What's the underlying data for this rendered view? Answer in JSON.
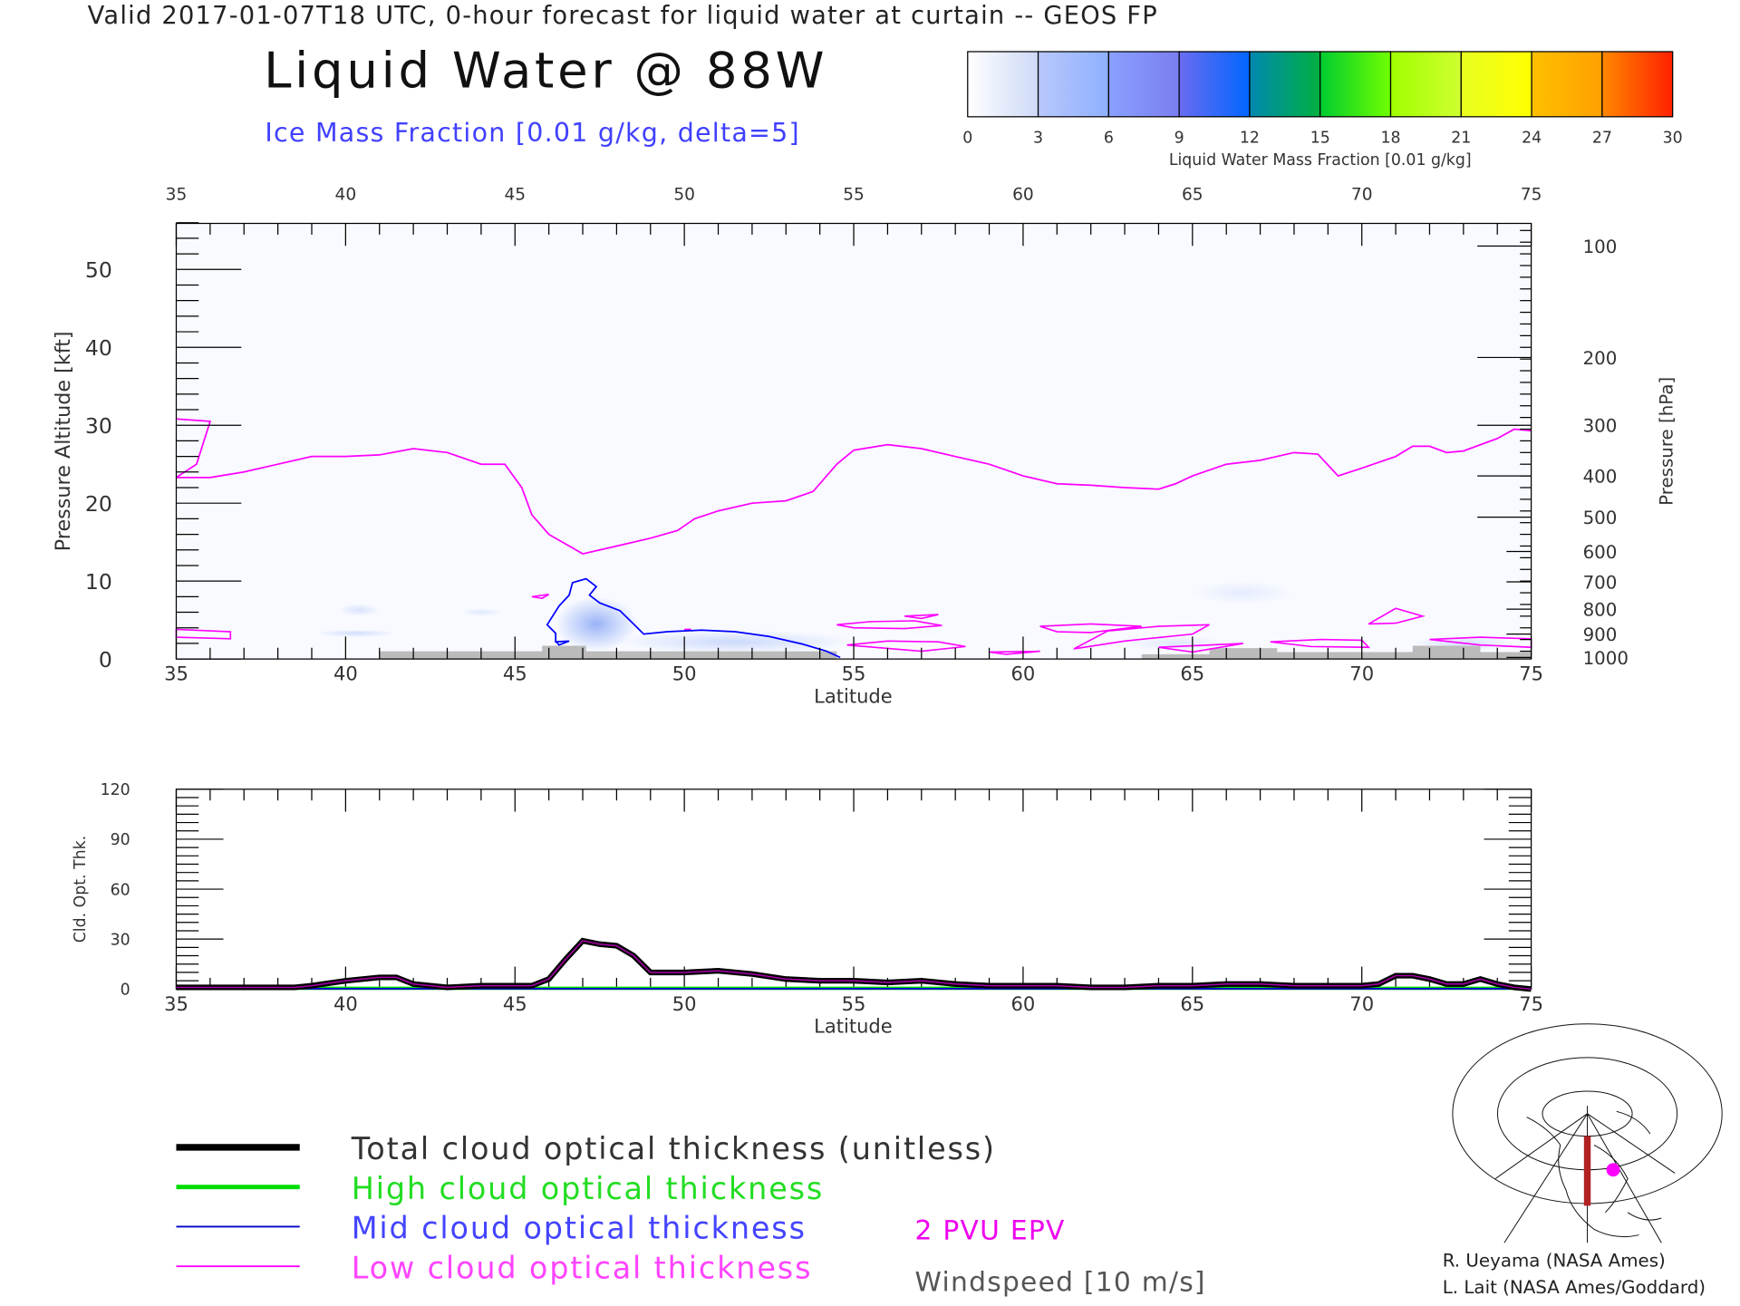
{
  "header": {
    "valid_line": "Valid 2017-01-07T18 UTC, 0-hour forecast for liquid water at curtain -- GEOS FP",
    "title": "Liquid Water @ 88W",
    "subtitle": "Ice Mass Fraction [0.01 g/kg, delta=5]"
  },
  "colorbar": {
    "ticks": [
      "0",
      "3",
      "6",
      "9",
      "12",
      "15",
      "18",
      "21",
      "24",
      "27",
      "30"
    ],
    "label": "Liquid Water Mass Fraction [0.01 g/kg]",
    "colors": [
      [
        "#ffffff",
        "#cdd9f7"
      ],
      [
        "#b8c8fb",
        "#8fb0ff"
      ],
      [
        "#8aa0ff",
        "#7a7ef0"
      ],
      [
        "#6a6cf0",
        "#0066ff"
      ],
      [
        "#0088b0",
        "#00b040"
      ],
      [
        "#00cc30",
        "#70ff00"
      ],
      [
        "#a0ff00",
        "#d0ff30"
      ],
      [
        "#e8ff20",
        "#ffff00"
      ],
      [
        "#ffc000",
        "#ffa000"
      ],
      [
        "#ff8800",
        "#ff2000"
      ]
    ]
  },
  "chart_data": [
    {
      "type": "line",
      "title": "Liquid Water @ 88W",
      "xlabel": "Latitude",
      "ylabel": "Pressure Altitude [kft]",
      "y2label": "Pressure [hPa]",
      "xlim": [
        35,
        75
      ],
      "ylim": [
        0,
        56
      ],
      "xticks": [
        35,
        40,
        45,
        50,
        55,
        60,
        65,
        70,
        75
      ],
      "yticks": [
        0,
        10,
        20,
        30,
        40,
        50
      ],
      "y2ticks": [
        {
          "label": "100",
          "kft": 53
        },
        {
          "label": "200",
          "kft": 38.7
        },
        {
          "label": "300",
          "kft": 30
        },
        {
          "label": "400",
          "kft": 23.5
        },
        {
          "label": "500",
          "kft": 18.2
        },
        {
          "label": "600",
          "kft": 13.8
        },
        {
          "label": "700",
          "kft": 9.9
        },
        {
          "label": "800",
          "kft": 6.4
        },
        {
          "label": "900",
          "kft": 3.2
        },
        {
          "label": "1000",
          "kft": 0.2
        }
      ],
      "epv_2pvu": {
        "name": "2 PVU EPV",
        "color": "#ff00ff",
        "points": [
          [
            35,
            23.3
          ],
          [
            36,
            23.3
          ],
          [
            37,
            24
          ],
          [
            38,
            25
          ],
          [
            39,
            26
          ],
          [
            40,
            26
          ],
          [
            41,
            26.2
          ],
          [
            42,
            27
          ],
          [
            43,
            26.5
          ],
          [
            44,
            25
          ],
          [
            44.7,
            25
          ],
          [
            45.2,
            22
          ],
          [
            45.5,
            18.5
          ],
          [
            46,
            16
          ],
          [
            47,
            13.5
          ],
          [
            48,
            14.5
          ],
          [
            49,
            15.5
          ],
          [
            49.8,
            16.5
          ],
          [
            50.3,
            18
          ],
          [
            51,
            19
          ],
          [
            52,
            20
          ],
          [
            53,
            20.3
          ],
          [
            53.8,
            21.5
          ],
          [
            54.5,
            25
          ],
          [
            55,
            26.8
          ],
          [
            56,
            27.5
          ],
          [
            57,
            27
          ],
          [
            58,
            26
          ],
          [
            59,
            25
          ],
          [
            60,
            23.5
          ],
          [
            61,
            22.5
          ],
          [
            62,
            22.3
          ],
          [
            63,
            22
          ],
          [
            64,
            21.8
          ],
          [
            64.5,
            22.5
          ],
          [
            65,
            23.5
          ],
          [
            66,
            25
          ],
          [
            67,
            25.5
          ],
          [
            68,
            26.5
          ],
          [
            68.7,
            26.3
          ],
          [
            69.3,
            23.5
          ],
          [
            70,
            24.5
          ],
          [
            71,
            26
          ],
          [
            71.5,
            27.3
          ],
          [
            72,
            27.3
          ],
          [
            72.5,
            26.5
          ],
          [
            73,
            26.7
          ],
          [
            74,
            28.3
          ],
          [
            74.5,
            29.5
          ],
          [
            75,
            29.3
          ]
        ],
        "left_segment": [
          [
            35,
            23.3
          ],
          [
            35.6,
            25
          ],
          [
            36,
            30.5
          ],
          [
            35,
            30.8
          ]
        ]
      },
      "ice_contour": {
        "color": "#0000ff",
        "points": [
          [
            54.6,
            0.2
          ],
          [
            54.2,
            1
          ],
          [
            53.5,
            1.9
          ],
          [
            52.5,
            2.9
          ],
          [
            51.5,
            3.5
          ],
          [
            50.5,
            3.7
          ],
          [
            49.5,
            3.5
          ],
          [
            48.8,
            3.2
          ],
          [
            48.5,
            4.5
          ],
          [
            48.1,
            6.2
          ],
          [
            47.5,
            7.2
          ],
          [
            47.2,
            8.2
          ],
          [
            47.4,
            9.3
          ],
          [
            47.1,
            10.3
          ],
          [
            46.7,
            9.8
          ],
          [
            46.6,
            8.2
          ],
          [
            46.3,
            6.8
          ],
          [
            45.95,
            4.4
          ],
          [
            46.2,
            3.3
          ],
          [
            46.2,
            2.2
          ],
          [
            46.6,
            2.3
          ],
          [
            46.3,
            1.8
          ],
          [
            46.2,
            2.3
          ]
        ]
      },
      "low_epv_loops": [
        [
          [
            54.5,
            4.4
          ],
          [
            55.5,
            4.8
          ],
          [
            56.8,
            4.9
          ],
          [
            57.6,
            4.3
          ],
          [
            56.5,
            3.9
          ],
          [
            55,
            4
          ]
        ],
        [
          [
            56.5,
            5.5
          ],
          [
            57.5,
            5.7
          ],
          [
            57,
            5.2
          ]
        ],
        [
          [
            54.8,
            1.8
          ],
          [
            56,
            2.3
          ],
          [
            57.5,
            2.2
          ],
          [
            58.3,
            1.6
          ],
          [
            57,
            1
          ]
        ],
        [
          [
            59,
            0.9
          ],
          [
            60.5,
            1
          ],
          [
            59.5,
            0.6
          ]
        ],
        [
          [
            60.5,
            4.2
          ],
          [
            62,
            4.5
          ],
          [
            63.5,
            4.2
          ],
          [
            62,
            3.4
          ],
          [
            61,
            3.5
          ]
        ],
        [
          [
            61.5,
            1.3
          ],
          [
            63,
            2.3
          ],
          [
            65,
            3.2
          ],
          [
            65.5,
            4.4
          ],
          [
            64,
            4.2
          ],
          [
            62.5,
            3.6
          ]
        ],
        [
          [
            64,
            1.5
          ],
          [
            65.5,
            1.8
          ],
          [
            66.5,
            2
          ],
          [
            65,
            0.9
          ]
        ],
        [
          [
            67.3,
            2.2
          ],
          [
            68.8,
            2.5
          ],
          [
            70,
            2.4
          ],
          [
            70.2,
            1.5
          ],
          [
            68.5,
            1.6
          ]
        ],
        [
          [
            70.2,
            4.5
          ],
          [
            71,
            6.5
          ],
          [
            71.8,
            5.5
          ],
          [
            71,
            4.6
          ]
        ],
        [
          [
            72,
            2.5
          ],
          [
            73.5,
            2.8
          ],
          [
            75,
            2.6
          ],
          [
            75,
            1.5
          ],
          [
            73.5,
            1.8
          ]
        ],
        [
          [
            35,
            2.8
          ],
          [
            36.6,
            2.6
          ],
          [
            36.6,
            3.5
          ],
          [
            35,
            3.8
          ]
        ],
        [
          [
            45.5,
            8
          ],
          [
            46,
            8.3
          ],
          [
            45.8,
            7.8
          ]
        ],
        [
          [
            50,
            3.8
          ],
          [
            50.2,
            3.8
          ]
        ]
      ],
      "ice_blobs": [
        [
          47.4,
          4.5,
          1.2,
          3.5,
          0.75
        ],
        [
          51.5,
          2.2,
          3.5,
          1.5,
          0.35
        ],
        [
          40.3,
          3.3,
          1.2,
          0.5,
          0.3
        ],
        [
          40.4,
          6.3,
          0.6,
          0.8,
          0.25
        ],
        [
          44,
          6,
          0.6,
          0.5,
          0.2
        ],
        [
          66.5,
          8.5,
          1.5,
          1.5,
          0.15
        ],
        [
          73,
          2,
          1.5,
          1,
          0.3
        ],
        [
          64.5,
          2,
          1.5,
          1,
          0.2
        ]
      ],
      "terrain": [
        [
          41,
          0
        ],
        [
          41,
          1
        ],
        [
          45.8,
          1
        ],
        [
          45.8,
          1.7
        ],
        [
          47.1,
          1.7
        ],
        [
          47.1,
          1
        ],
        [
          54.5,
          1
        ],
        [
          54.5,
          0
        ],
        [
          63.5,
          0
        ],
        [
          63.5,
          0.6
        ],
        [
          65.5,
          0.6
        ],
        [
          65.5,
          1.4
        ],
        [
          67.5,
          1.4
        ],
        [
          67.5,
          0.9
        ],
        [
          71.5,
          0.9
        ],
        [
          71.5,
          1.7
        ],
        [
          73.5,
          1.7
        ],
        [
          73.5,
          0.9
        ],
        [
          75,
          0.9
        ],
        [
          75,
          0
        ]
      ]
    },
    {
      "type": "line",
      "xlabel": "Latitude",
      "ylabel": "Cld. Opt. Thk.",
      "xlim": [
        35,
        75
      ],
      "ylim": [
        0,
        120
      ],
      "xticks": [
        35,
        40,
        45,
        50,
        55,
        60,
        65,
        70,
        75
      ],
      "yticks": [
        0,
        30,
        60,
        90,
        120
      ],
      "x": [
        35,
        36,
        37,
        38,
        38.5,
        39,
        40,
        41,
        41.5,
        42,
        43,
        44,
        45,
        45.5,
        46,
        46.5,
        47,
        47.5,
        48,
        48.5,
        49,
        50,
        51,
        52,
        53,
        54,
        55,
        56,
        57,
        58,
        59,
        60,
        61,
        62,
        63,
        64,
        65,
        66,
        67,
        68,
        69,
        70,
        70.5,
        71,
        71.5,
        72,
        72.5,
        73,
        73.5,
        74,
        74.5,
        75
      ],
      "series": [
        {
          "name": "Total cloud optical thickness (unitless)",
          "color": "#000000",
          "values": [
            1,
            1,
            1,
            1,
            1,
            2,
            5,
            7,
            7,
            3,
            1,
            2,
            2,
            2,
            6,
            18,
            29,
            27,
            26,
            20,
            10,
            10,
            11,
            9,
            6,
            5,
            5,
            4,
            5,
            3,
            2,
            2,
            2,
            1,
            1,
            2,
            2,
            3,
            3,
            2,
            2,
            2,
            3,
            8,
            8,
            6,
            3,
            3,
            6,
            3,
            1,
            0
          ]
        },
        {
          "name": "High cloud optical thickness",
          "color": "#00dd00",
          "values": [
            0.5,
            0.5,
            0.5,
            0.5,
            0.5,
            0.5,
            0.5,
            0.5,
            0.5,
            0.5,
            0.5,
            0.5,
            0.5,
            0.5,
            0.5,
            0.5,
            0.5,
            0.5,
            0.5,
            0.5,
            0.5,
            0.5,
            0.5,
            0.5,
            0.5,
            0.5,
            0.5,
            0.5,
            0.5,
            0.5,
            0.5,
            0.5,
            0.5,
            0.5,
            0.5,
            0.5,
            0.5,
            0.5,
            0.5,
            0.5,
            0.5,
            0.5,
            0.5,
            0.5,
            0.5,
            0.5,
            0.5,
            0.5,
            0.5,
            0.5,
            0.5,
            0.5
          ]
        },
        {
          "name": "Mid cloud optical thickness",
          "color": "#0000cc",
          "values": [
            0.2,
            0.2,
            0.2,
            0.2,
            0.2,
            0.2,
            0.2,
            0.2,
            0.2,
            0.2,
            0.2,
            0.2,
            0.2,
            0.2,
            0.2,
            0.2,
            0.2,
            0.2,
            0.2,
            0.2,
            0.2,
            0.2,
            0.2,
            0.2,
            0.2,
            0.2,
            0.2,
            0.2,
            0.2,
            0.2,
            0.2,
            0.2,
            0.2,
            0.2,
            0.2,
            0.2,
            0.2,
            0.2,
            0.2,
            0.2,
            0.2,
            0.2,
            0.2,
            0.2,
            0.2,
            0.2,
            0.2,
            0.2,
            0.2,
            0.2,
            0.2,
            0.2
          ]
        }
      ]
    }
  ],
  "legend": {
    "items": [
      {
        "label": "Total cloud optical thickness (unitless)",
        "color": "#000000",
        "text_color": "#333333"
      },
      {
        "label": "High cloud optical thickness",
        "color": "#00dd00",
        "text_color": "#22dd22"
      },
      {
        "label": "Mid cloud optical thickness",
        "color": "#0000cc",
        "text_color": "#4444ff"
      },
      {
        "label": "Low cloud optical thickness",
        "color": "#ff00ff",
        "text_color": "#ff44ff"
      }
    ],
    "epv_label": "2 PVU EPV",
    "windspeed_label": "Windspeed [10 m/s]"
  },
  "credits": {
    "line1": "R. Ueyama (NASA Ames)",
    "line2": "L. Lait (NASA Ames/Goddard)"
  }
}
